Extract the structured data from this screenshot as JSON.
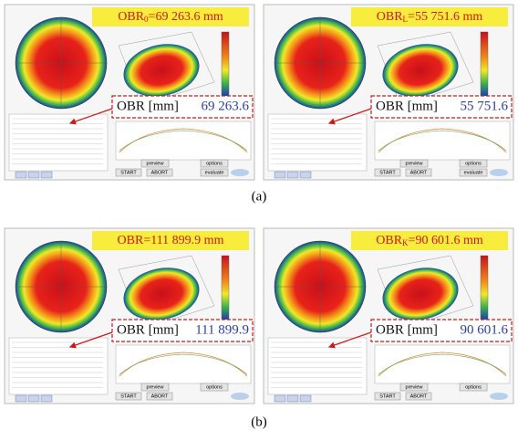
{
  "panels": [
    {
      "title": {
        "prefix": "OBR",
        "sub": "0",
        "rest": "=69 263.6 mm"
      },
      "box_label": "OBR [mm]",
      "box_value": "69 263.6",
      "buttons": [
        "preview",
        "options",
        "START",
        "ABORT",
        "evaluate"
      ]
    },
    {
      "title": {
        "prefix": "OBR",
        "sub": "L",
        "rest": "=55 751.6 mm"
      },
      "box_label": "OBR [mm]",
      "box_value": "55 751.6",
      "buttons": [
        "preview",
        "options",
        "START",
        "ABORT",
        "evaluate"
      ]
    },
    {
      "title": {
        "prefix": "OBR",
        "sub": "",
        "rest": "=111 899.9 mm"
      },
      "box_label": "OBR [mm]",
      "box_value": "111 899.9",
      "buttons": [
        "preview",
        "options",
        "START",
        "ABORT"
      ]
    },
    {
      "title": {
        "prefix": "OBR",
        "sub": "K",
        "rest": "=90 601.6 mm"
      },
      "box_label": "OBR [mm]",
      "box_value": "90 601.6",
      "buttons": [
        "preview",
        "options",
        "START",
        "ABORT"
      ]
    }
  ],
  "captions": [
    "(a)",
    "(b)"
  ]
}
